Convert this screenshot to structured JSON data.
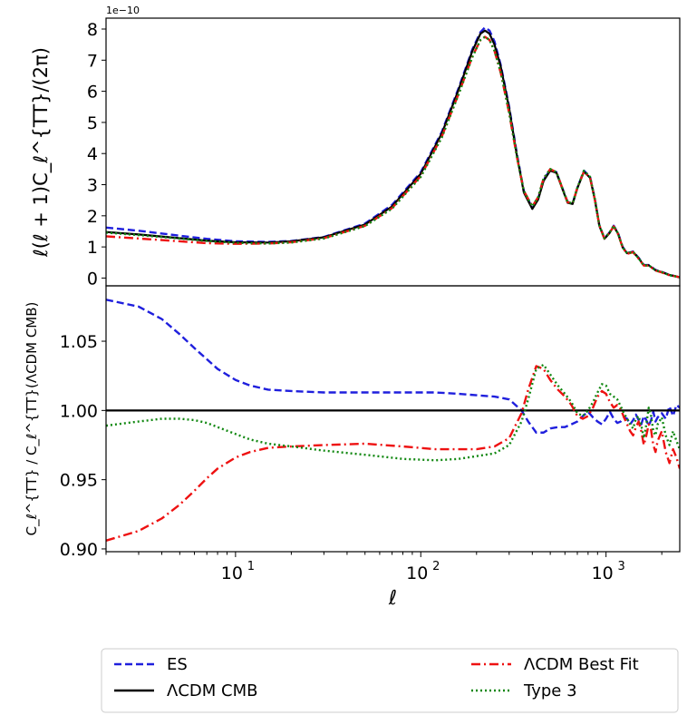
{
  "chart_data": [
    {
      "panel": "top",
      "type": "line",
      "title": "",
      "ylabel": "ℓ(ℓ + 1)C_ℓ^{TT}/(2π)",
      "offset_text": "1e−10",
      "xscale": "log",
      "xlim": [
        2,
        2500
      ],
      "ylim": [
        -0.25,
        8.35
      ],
      "yticks": [
        0,
        1,
        2,
        3,
        4,
        5,
        6,
        7,
        8
      ],
      "ytick_labels": [
        "0",
        "1",
        "2",
        "3",
        "4",
        "5",
        "6",
        "7",
        "8"
      ],
      "series": [
        {
          "name": "ES",
          "color": "#1f1fdd",
          "dash": "dashed",
          "x": [
            2,
            3,
            5,
            7,
            10,
            15,
            20,
            30,
            50,
            70,
            100,
            130,
            160,
            190,
            210,
            222,
            235,
            250,
            270,
            300,
            330,
            360,
            400,
            430,
            460,
            500,
            540,
            580,
            620,
            660,
            700,
            760,
            820,
            870,
            920,
            980,
            1040,
            1100,
            1160,
            1230,
            1300,
            1400,
            1500,
            1600,
            1700,
            1850,
            2000,
            2200,
            2400,
            2500
          ],
          "y": [
            1.62,
            1.52,
            1.36,
            1.26,
            1.18,
            1.16,
            1.19,
            1.32,
            1.75,
            2.35,
            3.4,
            4.7,
            6.1,
            7.35,
            7.9,
            8.05,
            7.95,
            7.6,
            6.85,
            5.5,
            4.0,
            2.8,
            2.25,
            2.55,
            3.15,
            3.48,
            3.4,
            2.9,
            2.45,
            2.4,
            2.9,
            3.45,
            3.25,
            2.55,
            1.7,
            1.28,
            1.45,
            1.68,
            1.45,
            1.0,
            0.8,
            0.85,
            0.65,
            0.42,
            0.42,
            0.26,
            0.2,
            0.1,
            0.05,
            0.02
          ]
        },
        {
          "name": "ΛCDM CMB",
          "color": "#000000",
          "dash": "solid",
          "x": [
            2,
            3,
            5,
            7,
            10,
            15,
            20,
            30,
            50,
            70,
            100,
            130,
            160,
            190,
            210,
            222,
            235,
            250,
            270,
            300,
            330,
            360,
            400,
            430,
            460,
            500,
            540,
            580,
            620,
            660,
            700,
            760,
            820,
            870,
            920,
            980,
            1040,
            1100,
            1160,
            1230,
            1300,
            1400,
            1500,
            1600,
            1700,
            1850,
            2000,
            2200,
            2400,
            2500
          ],
          "y": [
            1.48,
            1.4,
            1.28,
            1.2,
            1.15,
            1.14,
            1.18,
            1.31,
            1.72,
            2.3,
            3.35,
            4.65,
            6.05,
            7.3,
            7.85,
            7.95,
            7.85,
            7.5,
            6.8,
            5.45,
            3.95,
            2.75,
            2.22,
            2.52,
            3.12,
            3.45,
            3.38,
            2.88,
            2.42,
            2.38,
            2.88,
            3.42,
            3.22,
            2.52,
            1.68,
            1.26,
            1.43,
            1.66,
            1.43,
            0.98,
            0.8,
            0.84,
            0.64,
            0.41,
            0.41,
            0.25,
            0.19,
            0.1,
            0.05,
            0.02
          ]
        },
        {
          "name": "ΛCDM  Best Fit",
          "color": "#ee1111",
          "dash": "dashdot",
          "x": [
            2,
            3,
            5,
            7,
            10,
            15,
            20,
            30,
            50,
            70,
            100,
            130,
            160,
            190,
            210,
            222,
            235,
            250,
            270,
            300,
            330,
            360,
            400,
            430,
            460,
            500,
            540,
            580,
            620,
            660,
            700,
            760,
            820,
            870,
            920,
            980,
            1040,
            1100,
            1160,
            1230,
            1300,
            1400,
            1500,
            1600,
            1700,
            1850,
            2000,
            2200,
            2400,
            2500
          ],
          "y": [
            1.34,
            1.27,
            1.18,
            1.12,
            1.1,
            1.11,
            1.15,
            1.28,
            1.68,
            2.25,
            3.28,
            4.55,
            5.92,
            7.12,
            7.65,
            7.75,
            7.65,
            7.3,
            6.6,
            5.3,
            3.9,
            2.8,
            2.3,
            2.6,
            3.2,
            3.5,
            3.4,
            2.9,
            2.44,
            2.4,
            2.9,
            3.42,
            3.22,
            2.52,
            1.7,
            1.27,
            1.44,
            1.66,
            1.42,
            0.98,
            0.78,
            0.83,
            0.62,
            0.4,
            0.4,
            0.24,
            0.18,
            0.09,
            0.05,
            0.02
          ]
        },
        {
          "name": "Type 3",
          "color": "#118811",
          "dash": "dotted",
          "x": [
            2,
            3,
            5,
            7,
            10,
            15,
            20,
            30,
            50,
            70,
            100,
            130,
            160,
            190,
            210,
            222,
            235,
            250,
            270,
            300,
            330,
            360,
            400,
            430,
            460,
            500,
            540,
            580,
            620,
            660,
            700,
            760,
            820,
            870,
            920,
            980,
            1040,
            1100,
            1160,
            1230,
            1300,
            1400,
            1500,
            1600,
            1700,
            1850,
            2000,
            2200,
            2400,
            2500
          ],
          "y": [
            1.46,
            1.38,
            1.27,
            1.19,
            1.13,
            1.11,
            1.14,
            1.27,
            1.67,
            2.23,
            3.25,
            4.52,
            5.9,
            7.1,
            7.65,
            7.75,
            7.65,
            7.3,
            6.62,
            5.32,
            3.92,
            2.8,
            2.3,
            2.6,
            3.2,
            3.5,
            3.4,
            2.9,
            2.44,
            2.4,
            2.9,
            3.45,
            3.25,
            2.55,
            1.7,
            1.28,
            1.45,
            1.68,
            1.44,
            0.98,
            0.79,
            0.84,
            0.63,
            0.4,
            0.41,
            0.25,
            0.19,
            0.09,
            0.05,
            0.02
          ]
        }
      ]
    },
    {
      "panel": "bottom",
      "type": "line",
      "xlabel": "ℓ",
      "ylabel": "C_ℓ^{TT} / C_ℓ^{TT}(ΛCDM CMB)",
      "xscale": "log",
      "xlim": [
        2,
        2500
      ],
      "ylim": [
        0.898,
        1.09
      ],
      "xticks": [
        10,
        100,
        1000
      ],
      "xtick_labels": [
        "10",
        "10",
        "10"
      ],
      "xtick_exponents": [
        "1",
        "2",
        "3"
      ],
      "yticks": [
        0.9,
        0.95,
        1.0,
        1.05
      ],
      "ytick_labels": [
        "0.90",
        "0.95",
        "1.00",
        "1.05"
      ],
      "series": [
        {
          "name": "ES",
          "color": "#1f1fdd",
          "dash": "dashed",
          "x": [
            2,
            3,
            4,
            5,
            6,
            7,
            8,
            10,
            12,
            15,
            20,
            30,
            50,
            80,
            120,
            160,
            200,
            250,
            300,
            350,
            380,
            420,
            460,
            500,
            550,
            600,
            650,
            700,
            750,
            800,
            850,
            900,
            950,
            1000,
            1050,
            1100,
            1150,
            1200,
            1250,
            1300,
            1350,
            1400,
            1450,
            1500,
            1550,
            1600,
            1650,
            1700,
            1750,
            1800,
            1850,
            1900,
            2000,
            2100,
            2200,
            2300,
            2400,
            2500
          ],
          "y": [
            1.08,
            1.075,
            1.066,
            1.055,
            1.045,
            1.037,
            1.03,
            1.022,
            1.018,
            1.015,
            1.014,
            1.013,
            1.013,
            1.013,
            1.013,
            1.012,
            1.011,
            1.01,
            1.008,
            1.0,
            0.992,
            0.984,
            0.984,
            0.987,
            0.988,
            0.988,
            0.99,
            0.992,
            0.996,
            0.999,
            0.995,
            0.992,
            0.99,
            0.994,
            0.999,
            0.994,
            0.991,
            0.992,
            0.995,
            0.994,
            0.99,
            0.993,
            0.997,
            0.993,
            0.99,
            0.996,
            0.993,
            0.989,
            0.993,
            0.999,
            0.992,
            0.995,
            0.998,
            0.994,
            1.003,
            0.996,
            1.004,
            1.002
          ]
        },
        {
          "name": "ΛCDM CMB",
          "color": "#000000",
          "dash": "solid",
          "x": [
            2,
            2500
          ],
          "y": [
            1.0,
            1.0
          ]
        },
        {
          "name": "ΛCDM  Best Fit",
          "color": "#ee1111",
          "dash": "dashdot",
          "x": [
            2,
            3,
            4,
            5,
            6,
            7,
            8,
            10,
            12,
            15,
            20,
            30,
            50,
            80,
            120,
            160,
            200,
            250,
            300,
            350,
            380,
            420,
            460,
            500,
            550,
            600,
            650,
            700,
            750,
            800,
            850,
            900,
            950,
            1000,
            1050,
            1100,
            1150,
            1200,
            1250,
            1300,
            1350,
            1400,
            1450,
            1500,
            1550,
            1600,
            1650,
            1700,
            1750,
            1800,
            1850,
            1900,
            2000,
            2100,
            2200,
            2300,
            2400,
            2500
          ],
          "y": [
            0.906,
            0.913,
            0.922,
            0.932,
            0.942,
            0.951,
            0.958,
            0.966,
            0.97,
            0.973,
            0.974,
            0.975,
            0.976,
            0.974,
            0.972,
            0.972,
            0.972,
            0.974,
            0.98,
            0.998,
            1.015,
            1.032,
            1.03,
            1.022,
            1.015,
            1.01,
            1.004,
            0.996,
            0.994,
            0.996,
            1.002,
            1.01,
            1.014,
            1.012,
            1.006,
            1.002,
            1.004,
            1.001,
            0.995,
            0.99,
            0.985,
            0.982,
            0.988,
            0.992,
            0.985,
            0.975,
            0.982,
            0.99,
            0.986,
            0.975,
            0.97,
            0.978,
            0.985,
            0.97,
            0.962,
            0.972,
            0.966,
            0.958
          ]
        },
        {
          "name": "Type 3",
          "color": "#118811",
          "dash": "dotted",
          "x": [
            2,
            3,
            4,
            5,
            6,
            7,
            8,
            10,
            12,
            15,
            20,
            30,
            50,
            80,
            120,
            160,
            200,
            250,
            300,
            350,
            380,
            420,
            460,
            500,
            550,
            600,
            650,
            700,
            750,
            800,
            850,
            900,
            950,
            1000,
            1050,
            1100,
            1150,
            1200,
            1250,
            1300,
            1350,
            1400,
            1450,
            1500,
            1550,
            1600,
            1650,
            1700,
            1750,
            1800,
            1850,
            1900,
            2000,
            2100,
            2200,
            2300,
            2400,
            2500
          ],
          "y": [
            0.989,
            0.992,
            0.994,
            0.994,
            0.993,
            0.991,
            0.988,
            0.983,
            0.979,
            0.976,
            0.974,
            0.971,
            0.968,
            0.965,
            0.964,
            0.965,
            0.967,
            0.969,
            0.975,
            0.992,
            1.008,
            1.03,
            1.033,
            1.026,
            1.018,
            1.012,
            1.006,
            0.998,
            0.996,
            1.0,
            1.006,
            1.013,
            1.019,
            1.018,
            1.012,
            1.01,
            1.008,
            1.003,
            0.998,
            0.994,
            0.99,
            0.987,
            0.994,
            0.996,
            0.989,
            0.98,
            0.99,
            1.002,
            0.996,
            0.985,
            0.982,
            0.99,
            0.995,
            0.982,
            0.975,
            0.985,
            0.978,
            0.972
          ]
        }
      ]
    }
  ],
  "legend": {
    "placement": "bottom, below axes, two columns",
    "items": [
      {
        "label": "ES",
        "color": "#1f1fdd",
        "dash": "dashed"
      },
      {
        "label": "ΛCDM CMB",
        "color": "#000000",
        "dash": "solid"
      },
      {
        "label": "ΛCDM  Best Fit",
        "color": "#ee1111",
        "dash": "dashdot"
      },
      {
        "label": "Type 3",
        "color": "#118811",
        "dash": "dotted"
      }
    ]
  }
}
